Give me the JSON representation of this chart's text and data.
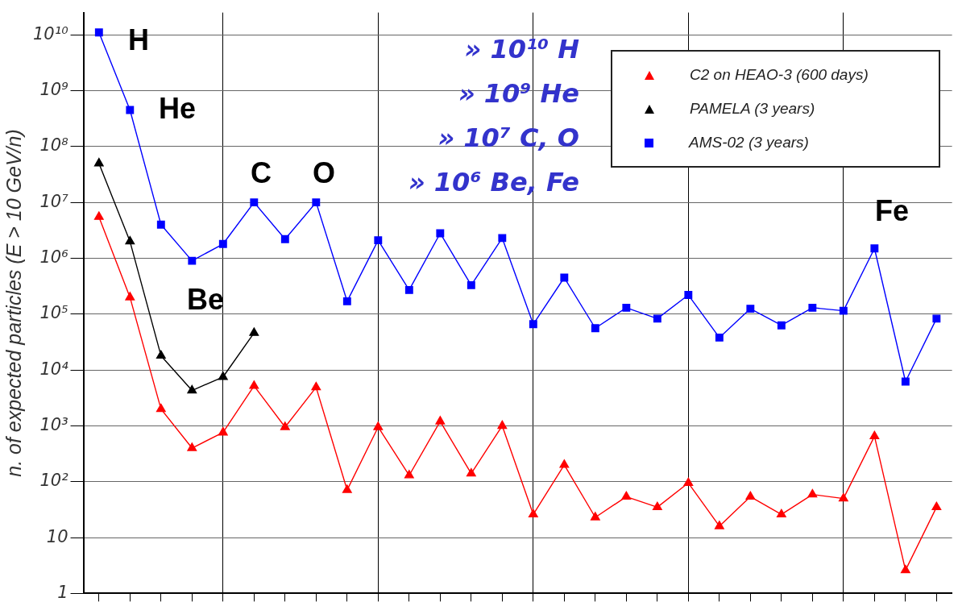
{
  "chart_data": {
    "type": "line",
    "ylabel": "n. of expected particles (E > 10 GeV/n)",
    "categories": [
      null,
      null,
      null,
      null,
      null,
      null,
      null,
      null,
      null,
      null,
      null,
      null,
      null,
      null,
      null,
      null,
      null,
      null,
      null,
      null,
      null,
      null,
      null,
      null,
      null,
      null,
      null,
      null
    ],
    "ylim": [
      1,
      25000000000
    ],
    "yticks": [
      1,
      10,
      {
        "value": 100,
        "label": "10²"
      },
      {
        "value": 1000,
        "label": "10³"
      },
      {
        "value": 10000,
        "label": "10⁴"
      },
      {
        "value": 100000,
        "label": "10⁵"
      },
      {
        "value": 1000000,
        "label": "10⁶"
      },
      {
        "value": 10000000,
        "label": "10⁷"
      },
      {
        "value": 100000000,
        "label": "10⁸"
      },
      {
        "value": 1000000000,
        "label": "10⁹"
      },
      {
        "value": 10000000000,
        "label": "10¹⁰"
      }
    ],
    "log": "y",
    "grid": true,
    "tick_labels": "y",
    "legend": "top right",
    "series": [
      {
        "name": "C2 on HEAO-3 (600 days)",
        "color": "#ff0000",
        "marker": "triangle",
        "values": [
          5500000,
          200000,
          2000,
          400,
          760,
          5200,
          950,
          4900,
          71,
          950,
          130,
          1200,
          140,
          1000,
          26,
          200,
          23,
          54,
          35,
          95,
          16,
          54,
          26,
          59,
          50,
          650,
          2.6,
          35
        ]
      },
      {
        "name": "PAMELA (3 years)",
        "color": "#000000",
        "marker": "triangle",
        "values": [
          50000000,
          2000000,
          18000,
          4300,
          7500,
          46000,
          null,
          null,
          null,
          null,
          null,
          null,
          null,
          null,
          null,
          null,
          null,
          null,
          null,
          null,
          null,
          null,
          null,
          null,
          null,
          null,
          null,
          null
        ]
      },
      {
        "name": "AMS-02 (3 years)",
        "color": "#0000ff",
        "marker": "square",
        "values": [
          11000000000,
          450000000,
          4000000,
          900000,
          1800000,
          10000000,
          2200000,
          10000000,
          170000,
          2100000,
          270000,
          2800000,
          330000,
          2300000,
          66000,
          450000,
          56000,
          130000,
          83000,
          220000,
          38000,
          125000,
          63000,
          130000,
          115000,
          1500000,
          6200,
          83000
        ]
      }
    ],
    "annotations": [
      "H",
      "He",
      "Be",
      "C",
      "O",
      "Fe",
      "» 10¹⁰ H",
      "» 10⁹ He",
      "» 10⁷ C, O",
      "» 10⁶ Be, Fe"
    ]
  }
}
